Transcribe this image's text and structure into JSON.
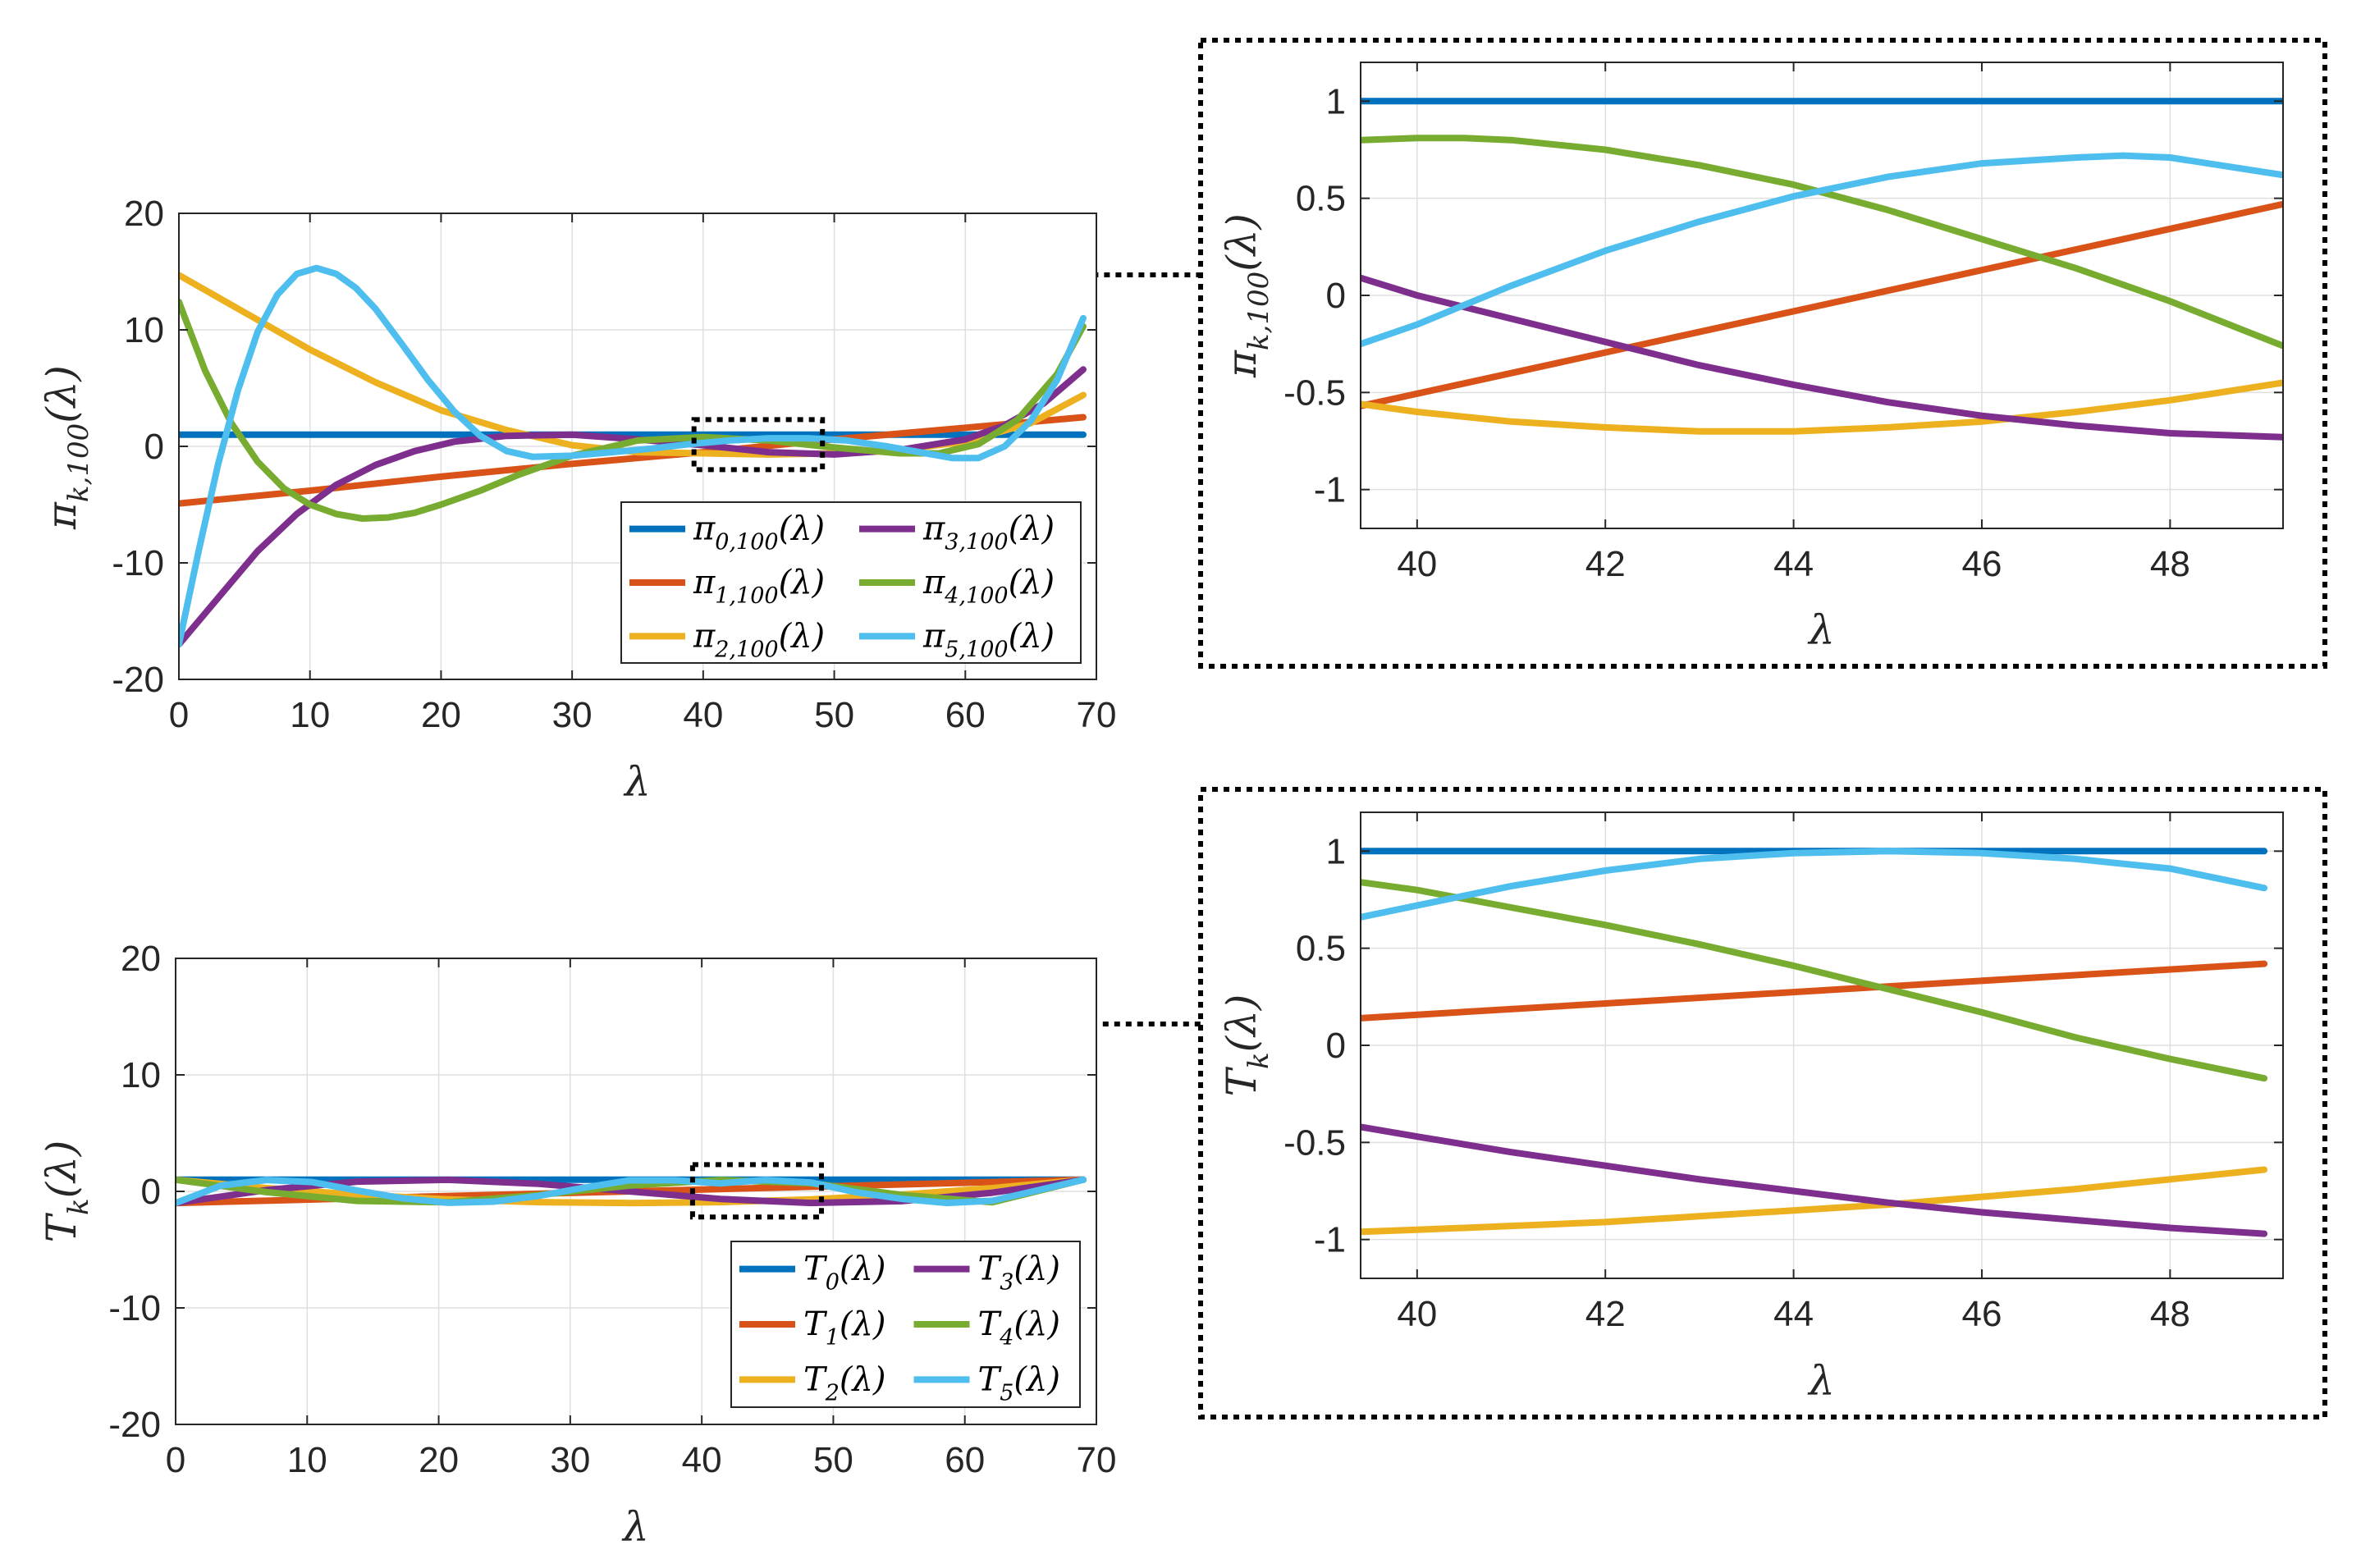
{
  "colors": [
    "#0072BD",
    "#D95319",
    "#EDB120",
    "#7E2F8E",
    "#77AC30",
    "#4DBEEE"
  ],
  "chart_data": [
    {
      "id": "pi-main",
      "type": "line",
      "xlabel": "λ",
      "ylabel": "π_{k,100}(λ)",
      "ylabel_main": "π",
      "ylabel_sub": "k,100",
      "ylabel_tail": "(λ)",
      "xlim": [
        0,
        70
      ],
      "ylim": [
        -20,
        20
      ],
      "xticks": [
        0,
        10,
        20,
        30,
        40,
        50,
        60,
        70
      ],
      "yticks": [
        -20,
        -10,
        0,
        10,
        20
      ],
      "xtick_labels": [
        "0",
        "10",
        "20",
        "30",
        "40",
        "50",
        "60",
        "70"
      ],
      "ytick_labels": [
        "-20",
        "-10",
        "0",
        "10",
        "20"
      ],
      "grid": true,
      "legend_position": "bottom-right",
      "zoom_window": {
        "x": [
          39.3,
          49.1
        ],
        "y": [
          -2,
          2.3
        ]
      },
      "series": [
        {
          "name": "π_{0,100}(λ)",
          "legend_main": "π",
          "legend_sub": "0,100",
          "legend_tail": "(λ)",
          "x": [
            0,
            10,
            20,
            30,
            40,
            50,
            60,
            69
          ],
          "y": [
            1,
            1,
            1,
            1,
            1,
            1,
            1,
            1
          ]
        },
        {
          "name": "π_{1,100}(λ)",
          "legend_main": "π",
          "legend_sub": "1,100",
          "legend_tail": "(λ)",
          "x": [
            0,
            10,
            20,
            30,
            40,
            50,
            60,
            69
          ],
          "y": [
            -4.9,
            -3.8,
            -2.6,
            -1.5,
            -0.5,
            0.6,
            1.6,
            2.5
          ]
        },
        {
          "name": "π_{2,100}(λ)",
          "legend_main": "π",
          "legend_sub": "2,100",
          "legend_tail": "(λ)",
          "x": [
            0,
            5,
            10,
            15,
            20,
            25,
            30,
            35,
            40,
            45,
            50,
            55,
            60,
            65,
            69
          ],
          "y": [
            14.7,
            11.5,
            8.3,
            5.5,
            3.1,
            1.4,
            0.1,
            -0.5,
            -0.6,
            -0.7,
            -0.6,
            -0.3,
            0.4,
            2.0,
            4.4
          ]
        },
        {
          "name": "π_{3,100}(λ)",
          "legend_main": "π",
          "legend_sub": "3,100",
          "legend_tail": "(λ)",
          "x": [
            0,
            3,
            6,
            9,
            12,
            15,
            18,
            21,
            25,
            30,
            35,
            40,
            45,
            50,
            55,
            60,
            63,
            66,
            69
          ],
          "y": [
            -17.0,
            -13.0,
            -9.0,
            -5.8,
            -3.3,
            -1.6,
            -0.4,
            0.4,
            0.9,
            1.0,
            0.6,
            0.1,
            -0.5,
            -0.7,
            -0.3,
            0.6,
            1.8,
            3.7,
            6.6
          ]
        },
        {
          "name": "π_{4,100}(λ)",
          "legend_main": "π",
          "legend_sub": "4,100",
          "legend_tail": "(λ)",
          "x": [
            0,
            2,
            4,
            6,
            8,
            10,
            12,
            14,
            16,
            18,
            20,
            23,
            26,
            30,
            35,
            40,
            45,
            50,
            55,
            58,
            61,
            64,
            67,
            69
          ],
          "y": [
            12.4,
            6.5,
            2.0,
            -1.3,
            -3.6,
            -5.0,
            -5.8,
            -6.2,
            -6.1,
            -5.7,
            -5.0,
            -3.8,
            -2.4,
            -0.8,
            0.5,
            0.8,
            0.5,
            -0.1,
            -0.6,
            -0.6,
            0.2,
            2.3,
            6.2,
            10.3
          ]
        },
        {
          "name": "π_{5,100}(λ)",
          "legend_main": "π",
          "legend_sub": "5,100",
          "legend_tail": "(λ)",
          "x": [
            0,
            1.5,
            3,
            4.5,
            6,
            7.5,
            9,
            10.5,
            12,
            13.5,
            15,
            17,
            19,
            21,
            23,
            25,
            27,
            30,
            33,
            36,
            39,
            42,
            45,
            48,
            51,
            54,
            57,
            59,
            61,
            63,
            65,
            67,
            69
          ],
          "y": [
            -17.0,
            -9.0,
            -1.5,
            4.8,
            9.8,
            13.0,
            14.8,
            15.3,
            14.8,
            13.6,
            11.8,
            8.8,
            5.7,
            3.0,
            0.9,
            -0.4,
            -0.9,
            -0.8,
            -0.5,
            -0.2,
            0.2,
            0.5,
            0.7,
            0.7,
            0.5,
            0.0,
            -0.6,
            -1.0,
            -1.0,
            0.0,
            2.2,
            5.7,
            11.0
          ]
        }
      ]
    },
    {
      "id": "pi-zoom",
      "type": "line",
      "xlabel": "λ",
      "ylabel": "π_{k,100}(λ)",
      "ylabel_main": "π",
      "ylabel_sub": "k,100",
      "ylabel_tail": "(λ)",
      "xlim": [
        39.4,
        49.2
      ],
      "ylim": [
        -1.2,
        1.2
      ],
      "xticks": [
        40,
        42,
        44,
        46,
        48
      ],
      "yticks": [
        -1,
        -0.5,
        0,
        0.5,
        1
      ],
      "xtick_labels": [
        "40",
        "42",
        "44",
        "46",
        "48"
      ],
      "ytick_labels": [
        "-1",
        "-0.5",
        "0",
        "0.5",
        "1"
      ],
      "grid": true,
      "series": [
        {
          "name": "π_{0,100}(λ)",
          "x": [
            39.4,
            49.2
          ],
          "y": [
            1,
            1
          ]
        },
        {
          "name": "π_{1,100}(λ)",
          "x": [
            39.4,
            49.2
          ],
          "y": [
            -0.57,
            0.47
          ]
        },
        {
          "name": "π_{2,100}(λ)",
          "x": [
            39.4,
            40,
            41,
            42,
            43,
            44,
            45,
            46,
            47,
            48,
            49.2
          ],
          "y": [
            -0.56,
            -0.6,
            -0.65,
            -0.68,
            -0.7,
            -0.7,
            -0.68,
            -0.65,
            -0.6,
            -0.54,
            -0.45
          ]
        },
        {
          "name": "π_{3,100}(λ)",
          "x": [
            39.4,
            40,
            41,
            42,
            43,
            44,
            45,
            46,
            47,
            48,
            49.2
          ],
          "y": [
            0.09,
            0.0,
            -0.12,
            -0.24,
            -0.36,
            -0.46,
            -0.55,
            -0.62,
            -0.67,
            -0.71,
            -0.73
          ]
        },
        {
          "name": "π_{4,100}(λ)",
          "x": [
            39.4,
            40,
            40.5,
            41,
            42,
            43,
            44,
            45,
            46,
            47,
            48,
            49.2
          ],
          "y": [
            0.8,
            0.81,
            0.81,
            0.8,
            0.75,
            0.67,
            0.57,
            0.44,
            0.29,
            0.14,
            -0.03,
            -0.26
          ]
        },
        {
          "name": "π_{5,100}(λ)",
          "x": [
            39.4,
            40,
            41,
            42,
            43,
            44,
            45,
            46,
            47,
            47.5,
            48,
            49.2
          ],
          "y": [
            -0.25,
            -0.15,
            0.05,
            0.23,
            0.38,
            0.51,
            0.61,
            0.68,
            0.71,
            0.72,
            0.71,
            0.62
          ]
        }
      ]
    },
    {
      "id": "t-main",
      "type": "line",
      "xlabel": "λ",
      "ylabel": "T_k(λ)",
      "ylabel_main": "T",
      "ylabel_sub": "k",
      "ylabel_tail": "(λ)",
      "xlim": [
        0,
        70
      ],
      "ylim": [
        -20,
        20
      ],
      "xticks": [
        0,
        10,
        20,
        30,
        40,
        50,
        60,
        70
      ],
      "yticks": [
        -20,
        -10,
        0,
        10,
        20
      ],
      "xtick_labels": [
        "0",
        "10",
        "20",
        "30",
        "40",
        "50",
        "60",
        "70"
      ],
      "ytick_labels": [
        "-20",
        "-10",
        "0",
        "10",
        "20"
      ],
      "grid": true,
      "legend_position": "bottom-right",
      "zoom_window": {
        "x": [
          39.3,
          49.1
        ],
        "y": [
          -2.2,
          2.3
        ]
      },
      "series": [
        {
          "name": "T_0(λ)",
          "legend_main": "T",
          "legend_sub": "0",
          "legend_tail": "(λ)",
          "x": [
            0,
            69
          ],
          "y": [
            1,
            1
          ]
        },
        {
          "name": "T_1(λ)",
          "legend_main": "T",
          "legend_sub": "1",
          "legend_tail": "(λ)",
          "x": [
            0,
            69
          ],
          "y": [
            -1,
            1
          ]
        },
        {
          "name": "T_2(λ)",
          "legend_main": "T",
          "legend_sub": "2",
          "legend_tail": "(λ)",
          "x": [
            0,
            6.9,
            13.8,
            20.7,
            27.6,
            34.5,
            41.4,
            48.3,
            55.2,
            62.1,
            69
          ],
          "y": [
            1,
            0.28,
            -0.28,
            -0.68,
            -0.92,
            -1.0,
            -0.92,
            -0.68,
            -0.28,
            0.28,
            1
          ]
        },
        {
          "name": "T_3(λ)",
          "legend_main": "T",
          "legend_sub": "3",
          "legend_tail": "(λ)",
          "x": [
            0,
            6.9,
            13.8,
            20.7,
            27.6,
            34.5,
            41.4,
            48.3,
            55.2,
            62.1,
            69
          ],
          "y": [
            -1,
            0.11,
            0.84,
            0.99,
            0.65,
            0.0,
            -0.65,
            -0.99,
            -0.84,
            -0.11,
            1
          ]
        },
        {
          "name": "T_4(λ)",
          "legend_main": "T",
          "legend_sub": "4",
          "legend_tail": "(λ)",
          "x": [
            0,
            6.9,
            13.8,
            20.7,
            27.6,
            34.5,
            41.4,
            48.3,
            55.2,
            62.1,
            69
          ],
          "y": [
            1,
            -0.06,
            -0.82,
            -0.94,
            -0.31,
            0.5,
            0.98,
            0.7,
            -0.31,
            -0.94,
            1
          ]
        },
        {
          "name": "T_5(λ)",
          "legend_main": "T",
          "legend_sub": "5",
          "legend_tail": "(λ)",
          "x": [
            0,
            3.45,
            6.9,
            10.35,
            13.8,
            17.25,
            20.7,
            24.15,
            27.6,
            31.05,
            34.5,
            37.95,
            41.4,
            44.85,
            48.3,
            51.75,
            55.2,
            58.65,
            62.1,
            65.55,
            69
          ],
          "y": [
            -1,
            0.5,
            0.98,
            0.8,
            0.08,
            -0.59,
            -0.98,
            -0.88,
            -0.39,
            0.31,
            0.95,
            0.95,
            0.69,
            0.98,
            0.76,
            -0.08,
            -0.64,
            -0.99,
            -0.8,
            0.1,
            1
          ]
        }
      ]
    },
    {
      "id": "t-zoom",
      "type": "line",
      "xlabel": "λ",
      "ylabel": "T_k(λ)",
      "ylabel_main": "T",
      "ylabel_sub": "k",
      "ylabel_tail": "(λ)",
      "xlim": [
        39.4,
        49.2
      ],
      "ylim": [
        -1.2,
        1.2
      ],
      "xticks": [
        40,
        42,
        44,
        46,
        48
      ],
      "yticks": [
        -1,
        -0.5,
        0,
        0.5,
        1
      ],
      "xtick_labels": [
        "40",
        "42",
        "44",
        "46",
        "48"
      ],
      "ytick_labels": [
        "-1",
        "-0.5",
        "0",
        "0.5",
        "1"
      ],
      "grid": true,
      "series": [
        {
          "name": "T_0(λ)",
          "x": [
            39.4,
            49
          ],
          "y": [
            1,
            1
          ]
        },
        {
          "name": "T_1(λ)",
          "x": [
            39.4,
            49
          ],
          "y": [
            0.14,
            0.42
          ]
        },
        {
          "name": "T_2(λ)",
          "x": [
            39.4,
            40,
            41,
            42,
            43,
            44,
            45,
            46,
            47,
            48,
            49
          ],
          "y": [
            -0.96,
            -0.95,
            -0.93,
            -0.91,
            -0.88,
            -0.85,
            -0.82,
            -0.78,
            -0.74,
            -0.69,
            -0.64
          ]
        },
        {
          "name": "T_3(λ)",
          "x": [
            39.4,
            40,
            41,
            42,
            43,
            44,
            45,
            46,
            47,
            48,
            49
          ],
          "y": [
            -0.42,
            -0.47,
            -0.55,
            -0.62,
            -0.69,
            -0.75,
            -0.81,
            -0.86,
            -0.9,
            -0.94,
            -0.97
          ]
        },
        {
          "name": "T_4(λ)",
          "x": [
            39.4,
            40,
            41,
            42,
            43,
            44,
            45,
            46,
            47,
            48,
            49
          ],
          "y": [
            0.84,
            0.8,
            0.71,
            0.62,
            0.52,
            0.41,
            0.29,
            0.17,
            0.04,
            -0.07,
            -0.17
          ]
        },
        {
          "name": "T_5(λ)",
          "x": [
            39.4,
            40,
            41,
            42,
            43,
            44,
            45,
            46,
            47,
            48,
            49
          ],
          "y": [
            0.66,
            0.72,
            0.82,
            0.9,
            0.96,
            0.99,
            1.0,
            0.99,
            0.96,
            0.91,
            0.81
          ]
        }
      ]
    }
  ]
}
